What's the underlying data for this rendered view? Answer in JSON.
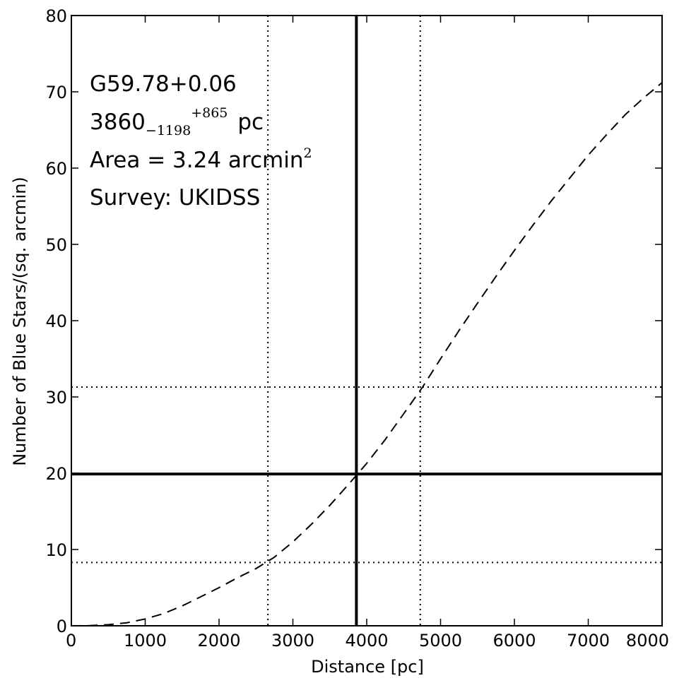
{
  "chart_data": {
    "type": "line",
    "xlabel": "Distance [pc]",
    "ylabel": "Number of Blue Stars/(sq. arcmin)",
    "xlim": [
      0,
      8000
    ],
    "ylim": [
      0,
      80
    ],
    "xticks": [
      0,
      1000,
      2000,
      3000,
      4000,
      5000,
      6000,
      7000,
      8000
    ],
    "yticks": [
      0,
      10,
      20,
      30,
      40,
      50,
      60,
      70,
      80
    ],
    "grid": false,
    "annotations": {
      "name": "G59.78+0.06",
      "distance_value": "3860",
      "distance_minus": "−1198",
      "distance_plus": "+865",
      "distance_unit": "pc",
      "area_text": "Area = 3.24 arcmin",
      "area_exp": "2",
      "survey": "Survey: UKIDSS"
    },
    "series": [
      {
        "style": "dashed",
        "x": [
          0,
          250,
          500,
          750,
          1000,
          1250,
          1500,
          1750,
          2000,
          2250,
          2500,
          2750,
          3000,
          3250,
          3500,
          3750,
          4000,
          4250,
          4500,
          4750,
          5000,
          5250,
          5500,
          5750,
          6000,
          6250,
          6500,
          6750,
          7000,
          7250,
          7500,
          7750,
          8000
        ],
        "y": [
          0,
          0.03,
          0.15,
          0.4,
          0.9,
          1.6,
          2.6,
          3.8,
          5.0,
          6.3,
          7.5,
          9.0,
          11.0,
          13.3,
          15.8,
          18.5,
          21.3,
          24.4,
          27.8,
          31.2,
          35.0,
          38.7,
          42.3,
          45.8,
          49.2,
          52.5,
          55.7,
          58.7,
          61.7,
          64.4,
          67.0,
          69.2,
          71.2
        ]
      }
    ],
    "lines": {
      "solid_vertical_x": 3860,
      "solid_horizontal_y": 19.9,
      "dotted_vertical_x": [
        2662,
        4725
      ],
      "dotted_horizontal_y": [
        8.3,
        31.3
      ]
    }
  }
}
